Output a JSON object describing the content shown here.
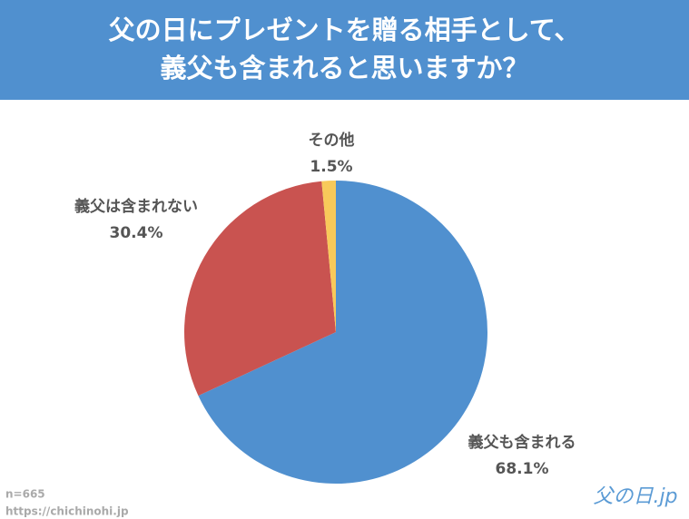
{
  "chart_data": {
    "type": "pie",
    "title": "父の日にプレゼントを贈る相手として、\n義父も含まれると思いますか？",
    "categories": [
      "義父も含まれる",
      "義父は含まれない",
      "その他"
    ],
    "values": [
      68.1,
      30.4,
      1.5
    ],
    "value_labels": [
      "68.1%",
      "30.4%",
      "1.5%"
    ],
    "colors": [
      "#5090cf",
      "#c95350",
      "#f8c95a"
    ],
    "notes": [
      "n=665",
      "https://chichinohi.jp"
    ],
    "logo": "父の日.jp"
  }
}
